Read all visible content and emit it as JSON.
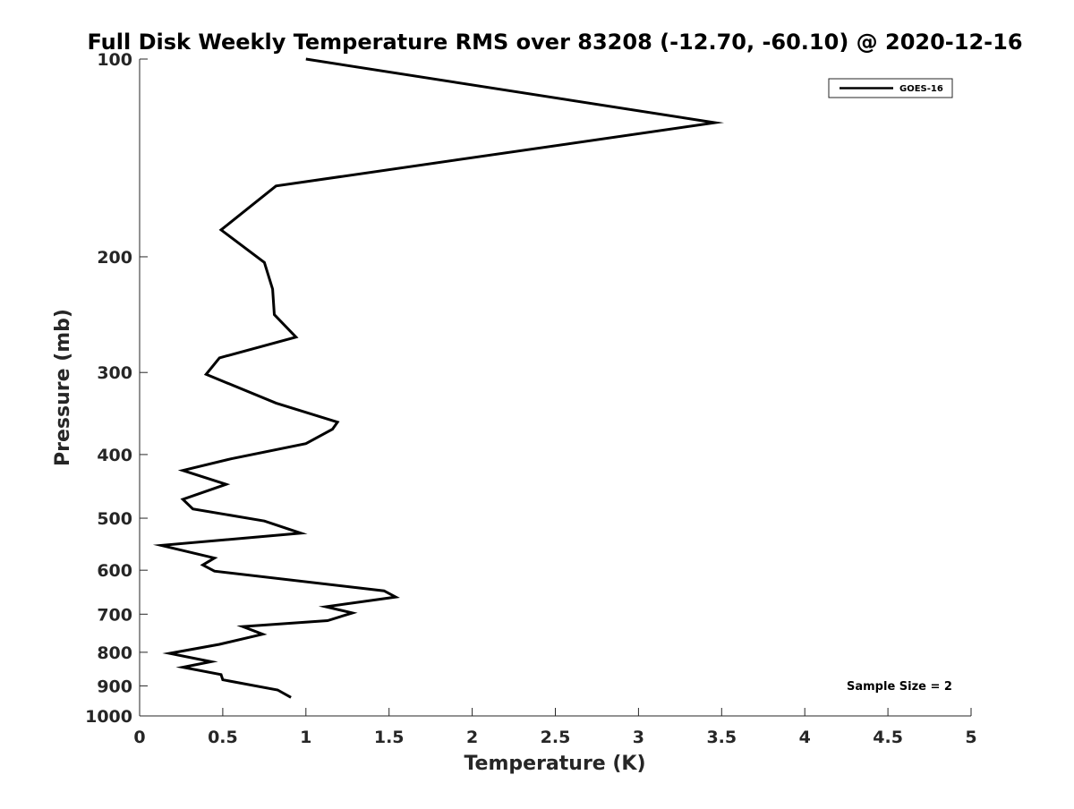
{
  "chart_data": {
    "type": "line",
    "title": "Full Disk Weekly Temperature RMS over 83208 (-12.70, -60.10) @ 2020-12-16",
    "xlabel": "Temperature (K)",
    "ylabel": "Pressure (mb)",
    "xlim": [
      0,
      5
    ],
    "ylim": [
      100,
      1000
    ],
    "yscale": "log",
    "y_reversed": true,
    "grid": false,
    "legend_position": "top-right",
    "x_ticks": [
      "0",
      "0.5",
      "1",
      "1.5",
      "2",
      "2.5",
      "3",
      "3.5",
      "4",
      "4.5",
      "5"
    ],
    "y_ticks": [
      "100",
      "200",
      "300",
      "400",
      "500",
      "600",
      "700",
      "800",
      "900",
      "1000"
    ],
    "series": [
      {
        "name": "GOES-16",
        "color": "#000000",
        "points": [
          [
            1.0,
            100
          ],
          [
            3.46,
            125
          ],
          [
            0.82,
            156
          ],
          [
            0.49,
            182
          ],
          [
            0.75,
            204
          ],
          [
            0.8,
            224
          ],
          [
            0.81,
            245
          ],
          [
            0.94,
            265
          ],
          [
            0.48,
            285
          ],
          [
            0.4,
            302
          ],
          [
            0.82,
            334
          ],
          [
            1.19,
            357
          ],
          [
            1.16,
            366
          ],
          [
            1.0,
            385
          ],
          [
            0.55,
            406
          ],
          [
            0.26,
            423
          ],
          [
            0.52,
            444
          ],
          [
            0.26,
            468
          ],
          [
            0.32,
            484
          ],
          [
            0.75,
            505
          ],
          [
            0.97,
            527
          ],
          [
            0.13,
            550
          ],
          [
            0.45,
            575
          ],
          [
            0.38,
            589
          ],
          [
            0.45,
            602
          ],
          [
            1.47,
            645
          ],
          [
            1.54,
            659
          ],
          [
            1.12,
            682
          ],
          [
            1.28,
            697
          ],
          [
            1.13,
            716
          ],
          [
            0.62,
            731
          ],
          [
            0.74,
            751
          ],
          [
            0.48,
            778
          ],
          [
            0.18,
            803
          ],
          [
            0.43,
            827
          ],
          [
            0.26,
            843
          ],
          [
            0.49,
            865
          ],
          [
            0.5,
            881
          ],
          [
            0.83,
            913
          ],
          [
            0.91,
            937
          ]
        ]
      }
    ],
    "annotations": [
      "Sample Size = 2"
    ]
  }
}
